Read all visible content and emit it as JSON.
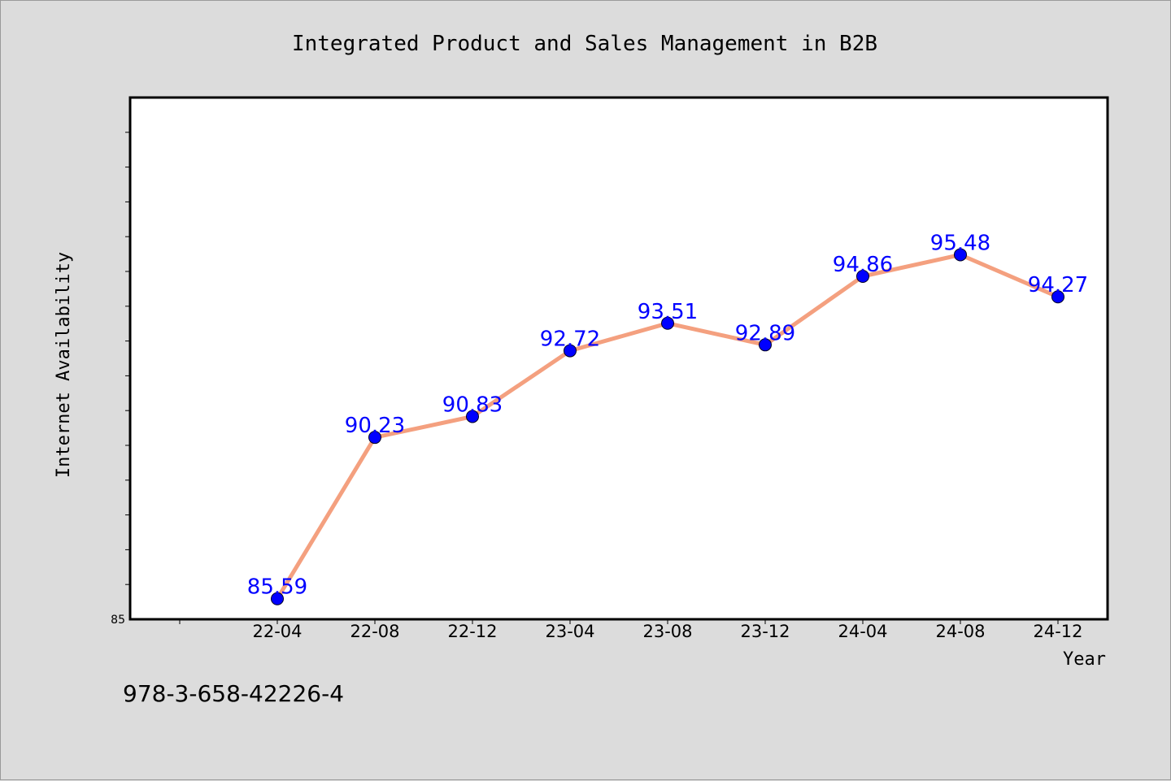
{
  "chart_data": {
    "type": "line",
    "title": "Integrated Product and Sales Management in B2B",
    "xlabel": "Year",
    "ylabel": "Internet Availability",
    "categories": [
      "22-04",
      "22-08",
      "22-12",
      "23-04",
      "23-08",
      "23-12",
      "24-04",
      "24-08",
      "24-12"
    ],
    "values": [
      85.59,
      90.23,
      90.83,
      92.72,
      93.51,
      92.89,
      94.86,
      95.48,
      94.27
    ],
    "data_labels": [
      "85.59",
      "90.23",
      "90.83",
      "92.72",
      "93.51",
      "92.89",
      "94.86",
      "95.48",
      "94.27"
    ],
    "ylim": [
      85,
      100
    ],
    "yticks_labeled": [
      "85"
    ],
    "grid": false,
    "legend": "none",
    "colors": {
      "line": "#f4a07f",
      "marker": "#0000ff",
      "label": "#0000ff",
      "background": "#dcdcdc",
      "plot_background": "#ffffff"
    }
  },
  "footer": {
    "isbn": "978-3-658-42226-4"
  }
}
